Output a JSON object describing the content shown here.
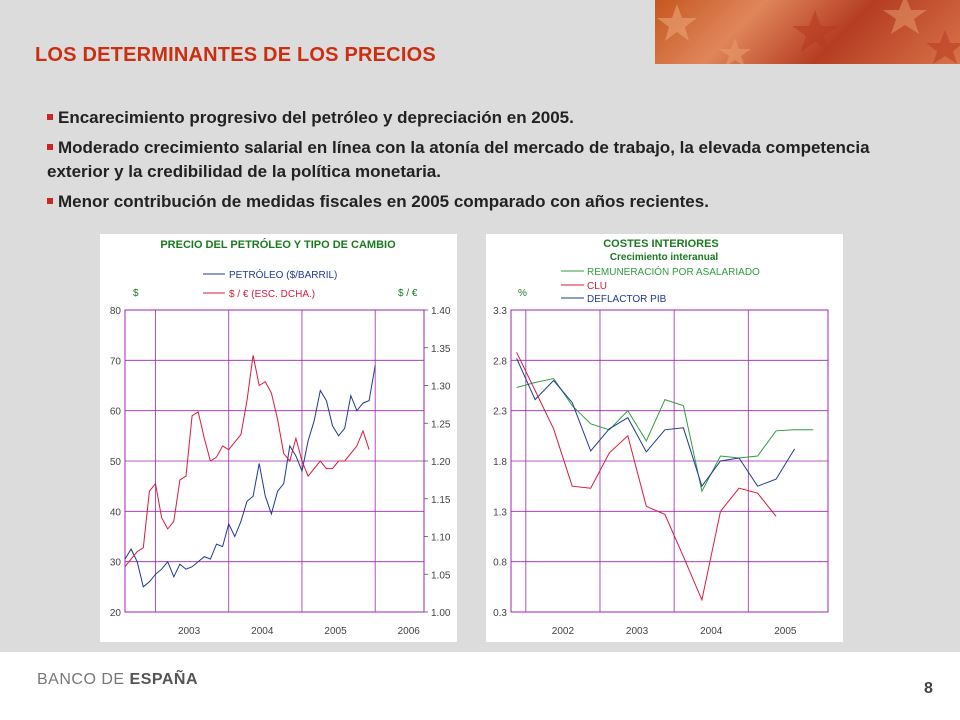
{
  "slide": {
    "title": "LOS DETERMINANTES DE LOS PRECIOS",
    "bullets": [
      "Encarecimiento progresivo del petróleo y depreciación en 2005.",
      "Moderado crecimiento salarial en línea con la atonía del mercado de trabajo, la elevada competencia exterior y la credibilidad de la política monetaria.",
      "Menor contribución de medidas fiscales en 2005 comparado con años recientes."
    ],
    "footer_logo_part1": "BANCO DE ",
    "footer_logo_part2": "ESPAÑA",
    "page_number": "8"
  },
  "chart_data": [
    {
      "type": "line",
      "title": "PRECIO DEL PETRÓLEO Y TIPO DE CAMBIO",
      "ylabel_left": "$",
      "ylabel_right": "$ / €",
      "ylim_left": [
        20,
        80
      ],
      "ylim_right": [
        1.0,
        1.4
      ],
      "yticks_left": [
        "80",
        "70",
        "60",
        "50",
        "40",
        "30",
        "20"
      ],
      "yticks_right": [
        "1.40",
        "1.35",
        "1.30",
        "1.25",
        "1.20",
        "1.15",
        "1.10",
        "1.05",
        "1.00"
      ],
      "xticks": [
        "2003",
        "2004",
        "2005",
        "2006"
      ],
      "legend": [
        {
          "label": "PETRÓLEO ($/BARRIL)",
          "color": "#1f3a93"
        },
        {
          "label": "$ / € (ESC. DCHA.)",
          "color": "#d81b3c"
        }
      ],
      "series": [
        {
          "name": "PETRÓLEO ($/BARRIL)",
          "axis": "left",
          "color": "#1f3a93",
          "x": [
            "2002-08",
            "2002-09",
            "2002-10",
            "2002-11",
            "2002-12",
            "2003-01",
            "2003-02",
            "2003-03",
            "2003-04",
            "2003-05",
            "2003-06",
            "2003-07",
            "2003-08",
            "2003-09",
            "2003-10",
            "2003-11",
            "2003-12",
            "2004-01",
            "2004-02",
            "2004-03",
            "2004-04",
            "2004-05",
            "2004-06",
            "2004-07",
            "2004-08",
            "2004-09",
            "2004-10",
            "2004-11",
            "2004-12",
            "2005-01",
            "2005-02",
            "2005-03",
            "2005-04",
            "2005-05",
            "2005-06",
            "2005-07",
            "2005-08",
            "2005-09",
            "2005-10",
            "2005-11",
            "2005-12",
            "2006-01"
          ],
          "y": [
            30.5,
            32.5,
            30,
            25,
            26,
            27.5,
            28.5,
            30,
            27,
            29.5,
            28.5,
            29,
            30,
            31,
            30.5,
            33.5,
            33,
            37.5,
            35,
            38,
            42,
            43,
            49.5,
            43,
            39.5,
            44,
            45.5,
            53,
            51,
            48,
            54,
            58,
            64,
            62,
            57,
            55,
            56.5,
            63,
            60,
            61.5,
            62,
            69
          ]
        },
        {
          "name": "$ / € (ESC. DCHA.)",
          "axis": "right",
          "color": "#d81b3c",
          "x": [
            "2002-08",
            "2002-09",
            "2002-10",
            "2002-11",
            "2002-12",
            "2003-01",
            "2003-02",
            "2003-03",
            "2003-04",
            "2003-05",
            "2003-06",
            "2003-07",
            "2003-08",
            "2003-09",
            "2003-10",
            "2003-11",
            "2003-12",
            "2004-01",
            "2004-02",
            "2004-03",
            "2004-04",
            "2004-05",
            "2004-06",
            "2004-07",
            "2004-08",
            "2004-09",
            "2004-10",
            "2004-11",
            "2004-12",
            "2005-01",
            "2005-02",
            "2005-03",
            "2005-04",
            "2005-05",
            "2005-06",
            "2005-07",
            "2005-08",
            "2005-09",
            "2005-10",
            "2005-11",
            "2005-12"
          ],
          "y": [
            1.06,
            1.07,
            1.08,
            1.085,
            1.16,
            1.17,
            1.125,
            1.11,
            1.12,
            1.175,
            1.18,
            1.26,
            1.265,
            1.23,
            1.2,
            1.205,
            1.22,
            1.215,
            1.225,
            1.235,
            1.28,
            1.34,
            1.3,
            1.305,
            1.29,
            1.255,
            1.21,
            1.2,
            1.23,
            1.2,
            1.18,
            1.19,
            1.2,
            1.19,
            1.19,
            1.2,
            1.2,
            1.21,
            1.22,
            1.24,
            1.215
          ]
        }
      ]
    },
    {
      "type": "line",
      "title": "COSTES INTERIORES",
      "subtitle": "Crecimiento interanual",
      "ylabel": "%",
      "ylim": [
        0.3,
        3.3
      ],
      "yticks": [
        "3.3",
        "2.8",
        "2.3",
        "1.8",
        "1.3",
        "0.8",
        "0.3"
      ],
      "xticks": [
        "2002",
        "2003",
        "2004",
        "2005"
      ],
      "legend": [
        {
          "label": "REMUNERACIÓN POR ASALARIADO",
          "color": "#2e9e3e"
        },
        {
          "label": "CLU",
          "color": "#d81b3c"
        },
        {
          "label": "DEFLACTOR PIB",
          "color": "#1f3a93"
        }
      ],
      "series": [
        {
          "name": "REMUNERACIÓN POR ASALARIADO",
          "color": "#2e9e3e",
          "x": [
            "2001 Q4",
            "2002 Q1",
            "2002 Q2",
            "2002 Q3",
            "2002 Q4",
            "2003 Q1",
            "2003 Q2",
            "2003 Q3",
            "2003 Q4",
            "2004 Q1",
            "2004 Q2",
            "2004 Q3",
            "2004 Q4",
            "2005 Q1",
            "2005 Q2",
            "2005 Q3",
            "2005 Q4"
          ],
          "y": [
            2.53,
            2.58,
            2.62,
            2.35,
            2.17,
            2.11,
            2.3,
            2.0,
            2.41,
            2.35,
            1.5,
            1.85,
            1.83,
            1.85,
            2.1,
            2.11,
            2.11
          ]
        },
        {
          "name": "CLU",
          "color": "#d81b3c",
          "x": [
            "2001 Q4",
            "2002 Q1",
            "2002 Q2",
            "2002 Q3",
            "2002 Q4",
            "2003 Q1",
            "2003 Q2",
            "2003 Q3",
            "2003 Q4",
            "2004 Q1",
            "2004 Q2",
            "2004 Q3",
            "2004 Q4",
            "2005 Q1",
            "2005 Q2"
          ],
          "y": [
            2.88,
            2.5,
            2.12,
            1.55,
            1.53,
            1.88,
            2.05,
            1.35,
            1.27,
            0.85,
            0.42,
            1.3,
            1.53,
            1.48,
            1.25
          ]
        },
        {
          "name": "DEFLACTOR PIB",
          "color": "#1f3a93",
          "x": [
            "2001 Q4",
            "2002 Q1",
            "2002 Q2",
            "2002 Q3",
            "2002 Q4",
            "2003 Q1",
            "2003 Q2",
            "2003 Q3",
            "2003 Q4",
            "2004 Q1",
            "2004 Q2",
            "2004 Q3",
            "2004 Q4",
            "2005 Q1",
            "2005 Q2",
            "2005 Q3"
          ],
          "y": [
            2.82,
            2.41,
            2.6,
            2.38,
            1.9,
            2.12,
            2.23,
            1.89,
            2.11,
            2.13,
            1.55,
            1.8,
            1.83,
            1.55,
            1.62,
            1.92
          ]
        }
      ]
    }
  ]
}
